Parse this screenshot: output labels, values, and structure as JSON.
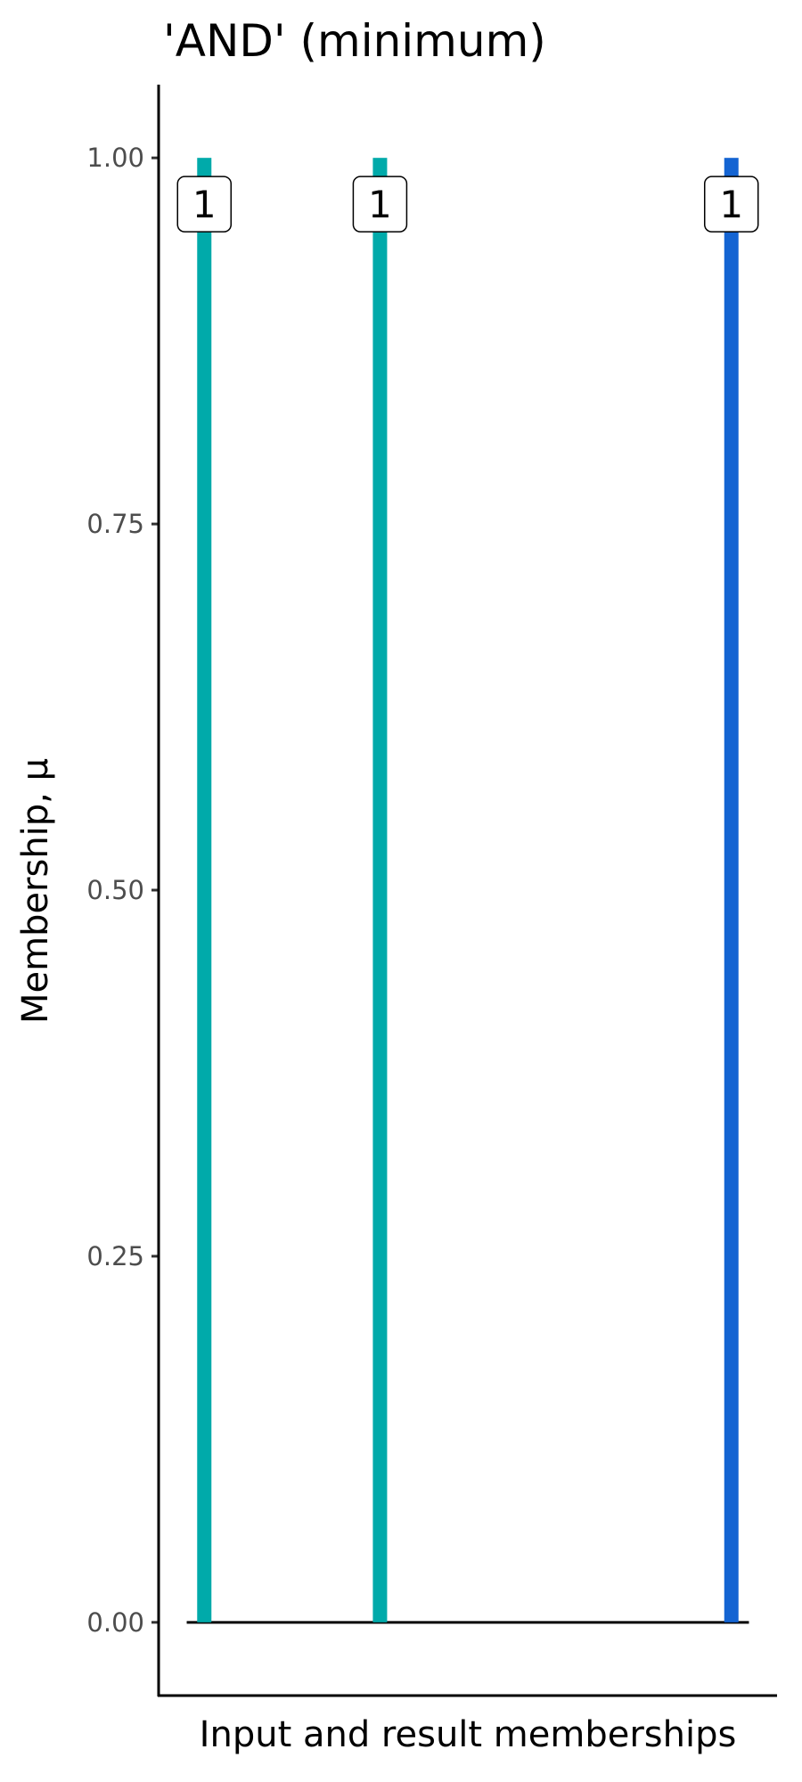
{
  "chart_data": {
    "type": "bar",
    "title": "'AND' (minimum)",
    "xlabel": "Input and result memberships",
    "ylabel": "Membership, μ",
    "x": [
      1,
      2,
      4
    ],
    "values": [
      1,
      1,
      1
    ],
    "data_labels": [
      "1",
      "1",
      "1"
    ],
    "bar_colors": [
      "#00AAAA",
      "#00AAAA",
      "#1464D2"
    ],
    "baseline": {
      "y": 0,
      "x_range": [
        0.9,
        4.1
      ]
    },
    "xlim": [
      0.74,
      4.26
    ],
    "ylim": [
      -0.05,
      1.05
    ],
    "yticks": [
      0,
      0.25,
      0.5,
      0.75,
      1.0
    ],
    "ytick_labels": [
      "0.00",
      "0.25",
      "0.50",
      "0.75",
      "1.00"
    ],
    "grid": false,
    "legend": "none"
  }
}
